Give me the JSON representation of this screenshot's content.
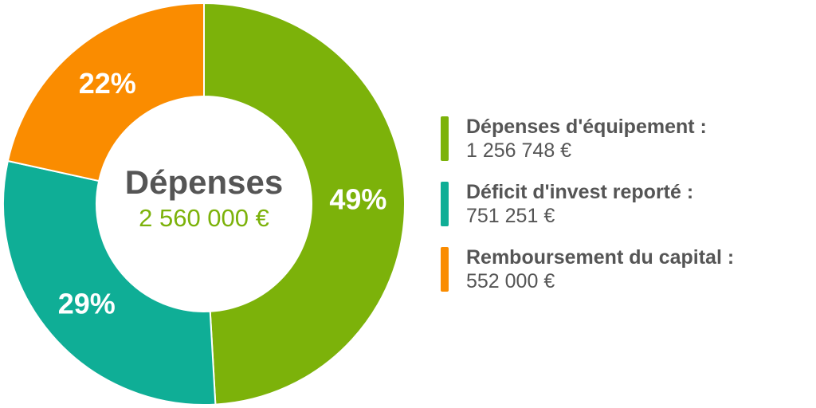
{
  "chart_data": {
    "type": "pie",
    "variant": "donut",
    "center": {
      "title": "Dépenses",
      "total": "2 560 000 €"
    },
    "series": [
      {
        "name": "Dépenses d'équipement :",
        "value": 1256748,
        "value_label": "1 256 748 €",
        "percent": 49,
        "percent_label": "49%",
        "color": "#7cb20a"
      },
      {
        "name": "Déficit d'invest reporté :",
        "value": 751251,
        "value_label": "751 251 €",
        "percent": 29,
        "percent_label": "29%",
        "color": "#0fae96"
      },
      {
        "name": "Remboursement du capital :",
        "value": 552000,
        "value_label": "552 000 €",
        "percent": 22,
        "percent_label": "22%",
        "color": "#fa8c00"
      }
    ],
    "legend_position": "right"
  },
  "colors": {
    "text": "#555555",
    "total": "#7cb20a",
    "slice_separator": "#ffffff"
  }
}
